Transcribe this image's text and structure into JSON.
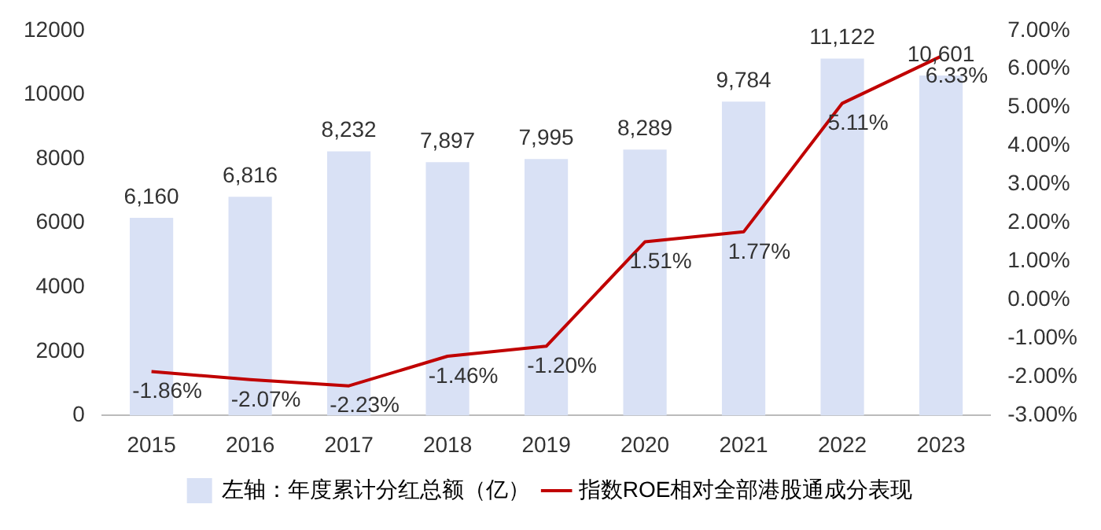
{
  "chart_data": {
    "type": "bar",
    "categories": [
      "2015",
      "2016",
      "2017",
      "2018",
      "2019",
      "2020",
      "2021",
      "2022",
      "2023"
    ],
    "series": [
      {
        "name": "左轴：年度累计分红总额（亿）",
        "color": "#d9e1f5",
        "values": [
          6160,
          6816,
          8232,
          7897,
          7995,
          8289,
          9784,
          11122,
          10601
        ],
        "value_labels": [
          "6,160",
          "6,816",
          "8,232",
          "7,897",
          "7,995",
          "8,289",
          "9,784",
          "11,122",
          "10,601"
        ]
      },
      {
        "name": "指数ROE相对全部港股通成分表现",
        "type": "line",
        "axis": "y2",
        "color": "#c00000",
        "values": [
          -1.86,
          -2.07,
          -2.23,
          -1.46,
          -1.2,
          1.51,
          1.77,
          5.11,
          6.33
        ],
        "value_labels": [
          "-1.86%",
          "-2.07%",
          "-2.23%",
          "-1.46%",
          "-1.20%",
          "1.51%",
          "1.77%",
          "5.11%",
          "6.33%"
        ]
      }
    ],
    "ylim": [
      0,
      12000
    ],
    "yticks": [
      0,
      2000,
      4000,
      6000,
      8000,
      10000,
      12000
    ],
    "y2lim": [
      -3,
      7
    ],
    "y2ticks": [
      {
        "value": -3,
        "label": "-3.00%"
      },
      {
        "value": -2,
        "label": "-2.00%"
      },
      {
        "value": -1,
        "label": "-1.00%"
      },
      {
        "value": 0,
        "label": "0.00%"
      },
      {
        "value": 1,
        "label": "1.00%"
      },
      {
        "value": 2,
        "label": "2.00%"
      },
      {
        "value": 3,
        "label": "3.00%"
      },
      {
        "value": 4,
        "label": "4.00%"
      },
      {
        "value": 5,
        "label": "5.00%"
      },
      {
        "value": 6,
        "label": "6.00%"
      },
      {
        "value": 7,
        "label": "7.00%"
      }
    ],
    "grid": false,
    "legend": "bottom",
    "marker": "none",
    "line_style": "solid"
  }
}
